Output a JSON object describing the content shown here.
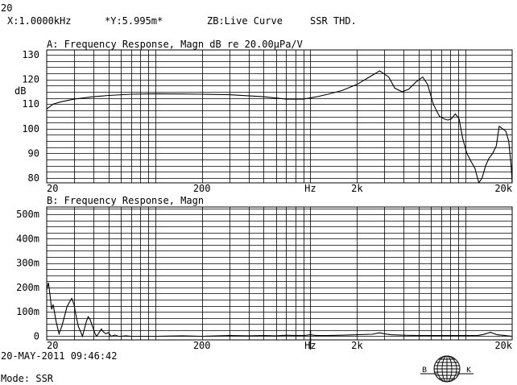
{
  "header": {
    "corner": "20",
    "x_readout": "X:1.0000kHz",
    "y_readout": "*Y:5.995m*",
    "zb_mode": "ZB:Live Curve",
    "ssr_mode": "SSR THD."
  },
  "footer": {
    "timestamp": "20-MAY-2011 09:46:42",
    "mode": "Mode: SSR",
    "logo_left": "B",
    "logo_right": "K"
  },
  "chart_data": [
    {
      "type": "line",
      "title": "A: Frequency Response, Magn dB re 20.00μPa/V",
      "ylabel": "dB",
      "xlabel": "Hz",
      "xscale": "log",
      "xlim": [
        20,
        20000
      ],
      "ylim": [
        78,
        132
      ],
      "yticks": [
        80,
        90,
        100,
        110,
        120,
        130
      ],
      "ytick_labels": [
        "80",
        "90",
        "100",
        "110",
        "120",
        "130"
      ],
      "xtick_labels": [
        {
          "v": 20,
          "label": "20"
        },
        {
          "v": 200,
          "label": "200"
        },
        {
          "v": 1000,
          "label": "Hz"
        },
        {
          "v": 2000,
          "label": "2k"
        },
        {
          "v": 20000,
          "label": "20k"
        }
      ],
      "grid": true,
      "series": [
        {
          "x": [
            20,
            22,
            25,
            30,
            40,
            50,
            70,
            100,
            150,
            200,
            300,
            500,
            700,
            900,
            1000,
            1100,
            1300,
            1600,
            2000,
            2400,
            2800,
            3200,
            3500,
            3900,
            4300,
            4800,
            5300,
            5700,
            6200,
            6800,
            7300,
            7700,
            8100,
            8600,
            9100,
            9600,
            10200,
            10800,
            11500,
            12200,
            12800,
            13500,
            14200,
            15000,
            15800,
            16500,
            17300,
            18200,
            19000,
            19700,
            20000
          ],
          "y": [
            108,
            110,
            111,
            112,
            113,
            113.5,
            114,
            114.2,
            114.1,
            114,
            113.8,
            113,
            112,
            112,
            112.5,
            113,
            114,
            115.5,
            118,
            121,
            123.5,
            121,
            116.5,
            115,
            116,
            119,
            121,
            118,
            110,
            105,
            104,
            103.5,
            104,
            106,
            104,
            96,
            90,
            87,
            84,
            78,
            80,
            85,
            88,
            90,
            93,
            101,
            100,
            99,
            95,
            85,
            78
          ]
        }
      ]
    },
    {
      "type": "line",
      "title": "B: Frequency Response, Magn",
      "xscale": "log",
      "xlim": [
        20,
        20000
      ],
      "ylim": [
        -0.015,
        0.53
      ],
      "yticks": [
        0,
        0.1,
        0.2,
        0.3,
        0.4,
        0.5
      ],
      "ytick_labels": [
        "0",
        "100m",
        "200m",
        "300m",
        "400m",
        "500m"
      ],
      "xtick_labels": [
        {
          "v": 20,
          "label": "20"
        },
        {
          "v": 200,
          "label": "200"
        },
        {
          "v": 1000,
          "label": "Hz"
        },
        {
          "v": 2000,
          "label": "2k"
        },
        {
          "v": 20000,
          "label": "20k"
        }
      ],
      "cursor_x": 1000,
      "grid": true,
      "series": [
        {
          "x": [
            20,
            20.5,
            21,
            21.5,
            22,
            23,
            24,
            25,
            26,
            27,
            28,
            29,
            30,
            31,
            32,
            33,
            34,
            35,
            36,
            37,
            38,
            39,
            40,
            41,
            42,
            43,
            44,
            45,
            46,
            48,
            50,
            52,
            55,
            58,
            60,
            65,
            70,
            80,
            100,
            150,
            200,
            300,
            400,
            500,
            600,
            700,
            800,
            900,
            950,
            1000,
            1050,
            1100,
            1300,
            1600,
            2000,
            2500,
            2800,
            3000,
            3300,
            4000,
            5000,
            7000,
            10000,
            12000,
            13000,
            14500,
            16000,
            18000,
            20000
          ],
          "y": [
            0.19,
            0.22,
            0.17,
            0.11,
            0.13,
            0.06,
            0.01,
            0.04,
            0.08,
            0.12,
            0.14,
            0.155,
            0.13,
            0.08,
            0.04,
            0.02,
            0.0,
            0.03,
            0.06,
            0.08,
            0.07,
            0.05,
            0.03,
            0.01,
            0.0,
            0.01,
            0.02,
            0.03,
            0.02,
            0.01,
            0.015,
            0.0,
            0.005,
            0.0,
            0.0,
            0.002,
            0.0,
            0.0,
            0.0,
            0.002,
            0.0,
            0.003,
            0.002,
            0.003,
            0.002,
            0.004,
            0.003,
            0.003,
            0.004,
            0.006,
            0.004,
            0.003,
            0.003,
            0.004,
            0.006,
            0.008,
            0.014,
            0.01,
            0.006,
            0.004,
            0.003,
            0.003,
            0.003,
            0.003,
            0.007,
            0.016,
            0.006,
            0.003,
            0.0
          ]
        }
      ]
    }
  ]
}
